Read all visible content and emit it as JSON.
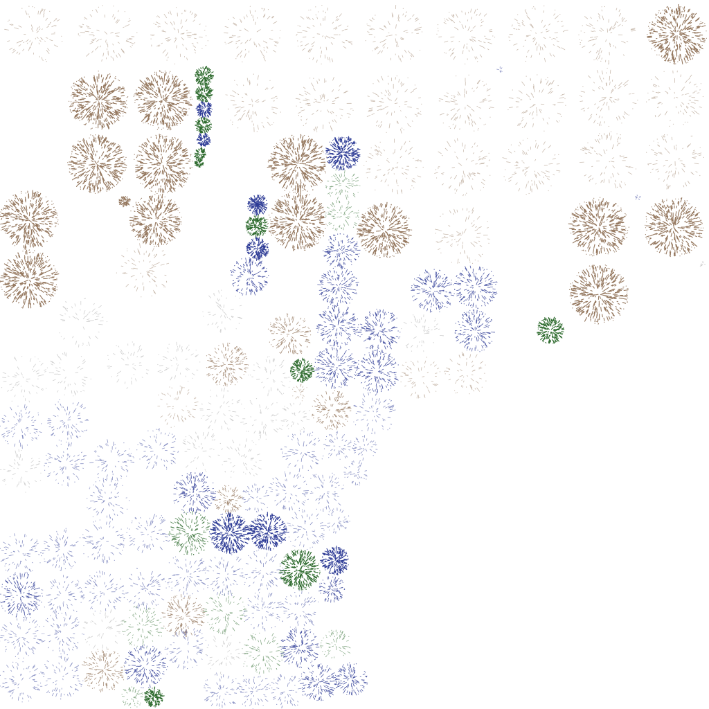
{
  "palette": {
    "background": "#ffffff",
    "brown": "#8a6a4e",
    "blue": "#2e3c96",
    "green": "#2e6b2e",
    "grey": "#8a8a8a"
  },
  "clusters": [
    {
      "kind": "faint-brown"
    },
    {
      "kind": "faint-brown"
    },
    {
      "kind": "faint-brown"
    },
    {
      "kind": "faint-brown"
    },
    {
      "kind": "faint-brown"
    },
    {
      "kind": "faint-brown"
    },
    {
      "kind": "faint-brown"
    },
    {
      "kind": "faint-brown"
    },
    {
      "kind": "faint-brown"
    },
    {
      "kind": "dense-brown"
    },
    {
      "kind": "dense-brown"
    },
    {
      "kind": "dense-brown"
    },
    {
      "kind": "dense-green"
    },
    {
      "kind": "dense-green"
    },
    {
      "kind": "dense-blue"
    },
    {
      "kind": "dense-green"
    },
    {
      "kind": "dense-blue"
    },
    {
      "kind": "dense-green"
    },
    {
      "kind": "dense-green"
    },
    {
      "kind": "faint-brown"
    },
    {
      "kind": "faint-brown"
    },
    {
      "kind": "faint-brown"
    },
    {
      "kind": "faint-brown"
    },
    {
      "kind": "faint-brown"
    },
    {
      "kind": "faint-brown"
    },
    {
      "kind": "faint-brown"
    },
    {
      "kind": "dense-brown"
    },
    {
      "kind": "dense-brown"
    },
    {
      "kind": "dense-brown"
    },
    {
      "kind": "dense-blue"
    },
    {
      "kind": "faint-green"
    },
    {
      "kind": "faint-brown"
    },
    {
      "kind": "faint-brown"
    },
    {
      "kind": "faint-brown"
    },
    {
      "kind": "faint-brown"
    },
    {
      "kind": "faint-brown"
    },
    {
      "kind": "dense-brown"
    },
    {
      "kind": "dense-brown"
    },
    {
      "kind": "dense-brown"
    },
    {
      "kind": "star-blue"
    },
    {
      "kind": "dense-green"
    },
    {
      "kind": "dense-blue"
    },
    {
      "kind": "dense-brown"
    },
    {
      "kind": "faint-green"
    },
    {
      "kind": "dense-brown"
    },
    {
      "kind": "faint-brown"
    },
    {
      "kind": "dense-brown"
    },
    {
      "kind": "dense-brown"
    },
    {
      "kind": "faint-grey"
    },
    {
      "kind": "mid-blue"
    },
    {
      "kind": "mid-blue"
    },
    {
      "kind": "mid-blue"
    },
    {
      "kind": "mid-blue"
    },
    {
      "kind": "mid-blue"
    },
    {
      "kind": "mid-blue"
    },
    {
      "kind": "dense-brown"
    },
    {
      "kind": "dense-brown"
    },
    {
      "kind": "faint-brown"
    },
    {
      "kind": "mid-brown"
    },
    {
      "kind": "faint-grey"
    },
    {
      "kind": "dense-green"
    },
    {
      "kind": "faint-grey"
    },
    {
      "kind": "mid-blue"
    },
    {
      "kind": "mid-blue"
    },
    {
      "kind": "faint-grey"
    },
    {
      "kind": "mid-brown"
    },
    {
      "kind": "faint-grey"
    },
    {
      "kind": "dense-green"
    },
    {
      "kind": "faint-grey"
    },
    {
      "kind": "faint-grey"
    },
    {
      "kind": "mid-blue"
    },
    {
      "kind": "faint-grey"
    },
    {
      "kind": "mid-brown"
    },
    {
      "kind": "faint-grey"
    },
    {
      "kind": "mid-blue"
    },
    {
      "kind": "faint-brown"
    },
    {
      "kind": "faint-brown"
    },
    {
      "kind": "faint-brown"
    },
    {
      "kind": "faint-brown"
    },
    {
      "kind": "faint-grey"
    },
    {
      "kind": "faint-grey"
    },
    {
      "kind": "faint-grey"
    },
    {
      "kind": "faint-blue"
    },
    {
      "kind": "faint-blue"
    },
    {
      "kind": "faint-blue"
    },
    {
      "kind": "faint-blue"
    },
    {
      "kind": "faint-blue"
    },
    {
      "kind": "faint-grey"
    },
    {
      "kind": "faint-grey"
    },
    {
      "kind": "faint-blue"
    },
    {
      "kind": "faint-blue"
    },
    {
      "kind": "faint-blue"
    },
    {
      "kind": "faint-blue"
    },
    {
      "kind": "faint-blue"
    },
    {
      "kind": "faint-grey"
    },
    {
      "kind": "faint-blue"
    },
    {
      "kind": "mid-blue"
    },
    {
      "kind": "mid-brown"
    },
    {
      "kind": "faint-blue"
    },
    {
      "kind": "faint-blue"
    },
    {
      "kind": "faint-blue"
    },
    {
      "kind": "faint-blue"
    },
    {
      "kind": "faint-blue"
    },
    {
      "kind": "faint-blue"
    },
    {
      "kind": "faint-blue"
    },
    {
      "kind": "mid-green"
    },
    {
      "kind": "dense-blue"
    },
    {
      "kind": "dense-blue"
    },
    {
      "kind": "faint-blue"
    },
    {
      "kind": "faint-blue"
    },
    {
      "kind": "faint-blue"
    },
    {
      "kind": "faint-blue"
    },
    {
      "kind": "faint-blue"
    },
    {
      "kind": "dense-green"
    },
    {
      "kind": "dense-blue"
    },
    {
      "kind": "mid-blue"
    },
    {
      "kind": "mid-blue"
    },
    {
      "kind": "faint-blue"
    },
    {
      "kind": "faint-blue"
    },
    {
      "kind": "faint-blue"
    },
    {
      "kind": "faint-blue"
    },
    {
      "kind": "faint-blue"
    },
    {
      "kind": "faint-green"
    },
    {
      "kind": "mid-brown"
    },
    {
      "kind": "faint-green"
    },
    {
      "kind": "faint-grey"
    },
    {
      "kind": "faint-blue"
    },
    {
      "kind": "faint-blue"
    },
    {
      "kind": "faint-blue"
    },
    {
      "kind": "faint-grey"
    },
    {
      "kind": "faint-green"
    },
    {
      "kind": "mid-blue"
    },
    {
      "kind": "faint-green"
    },
    {
      "kind": "mid-blue"
    },
    {
      "kind": "mid-brown"
    },
    {
      "kind": "faint-blue"
    },
    {
      "kind": "faint-blue"
    },
    {
      "kind": "faint-blue"
    },
    {
      "kind": "faint-blue"
    },
    {
      "kind": "faint-blue"
    },
    {
      "kind": "mid-blue"
    },
    {
      "kind": "mid-blue"
    },
    {
      "kind": "faint-green"
    },
    {
      "kind": "dense-green"
    },
    {
      "kind": "faint-blue"
    },
    {
      "kind": "faint-blue"
    },
    {
      "kind": "faint-blue"
    },
    {
      "kind": "faint-blue"
    },
    {
      "kind": "faint-blue"
    },
    {
      "kind": "faint-blue"
    },
    {
      "kind": "faint-green"
    },
    {
      "kind": "faint-green"
    },
    {
      "kind": "mid-brown"
    },
    {
      "kind": "faint-blue"
    },
    {
      "kind": "faint-blue"
    },
    {
      "kind": "faint-blue"
    },
    {
      "kind": "faint-grey"
    },
    {
      "kind": "faint-blue"
    },
    {
      "kind": "dense-green"
    },
    {
      "kind": "dense-blue"
    },
    {
      "kind": "faint-green"
    },
    {
      "kind": "dense-blue"
    },
    {
      "kind": "dense-blue"
    },
    {
      "kind": "dense-blue"
    },
    {
      "kind": "dense-green"
    },
    {
      "kind": "faint-grey"
    },
    {
      "kind": "faint-grey"
    },
    {
      "kind": "faint-grey"
    },
    {
      "kind": "dense-green"
    },
    {
      "kind": "dense-green"
    },
    {
      "kind": "faint-grey"
    }
  ]
}
